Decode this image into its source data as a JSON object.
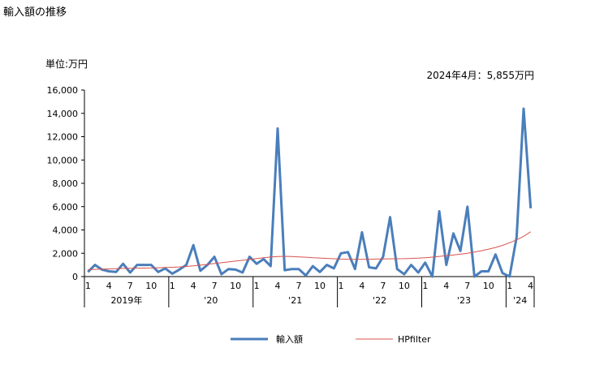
{
  "title": "輸入額の推移",
  "unit_label": "単位:万円",
  "annotation": "2024年4月：5,855万円",
  "colors": {
    "series1": "#4a7ebb",
    "series2": "#d9534f",
    "axis": "#000000"
  },
  "chart_data": {
    "type": "line",
    "ylim": [
      0,
      16000
    ],
    "y_ticks": [
      "0",
      "2,000",
      "4,000",
      "6,000",
      "8,000",
      "10,000",
      "12,000",
      "14,000",
      "16,000"
    ],
    "month_labels": [
      "1",
      "4",
      "7",
      "10",
      "1",
      "4",
      "7",
      "10",
      "1",
      "4",
      "7",
      "10",
      "1",
      "4",
      "7",
      "10",
      "1",
      "4",
      "7",
      "10",
      "1",
      "4"
    ],
    "year_labels": [
      "2019年",
      "'20",
      "'21",
      "'22",
      "'23",
      "'24"
    ],
    "legend_position": "bottom",
    "grid": false,
    "x": [
      "2019-01",
      "2019-02",
      "2019-03",
      "2019-04",
      "2019-05",
      "2019-06",
      "2019-07",
      "2019-08",
      "2019-09",
      "2019-10",
      "2019-11",
      "2019-12",
      "2020-01",
      "2020-02",
      "2020-03",
      "2020-04",
      "2020-05",
      "2020-06",
      "2020-07",
      "2020-08",
      "2020-09",
      "2020-10",
      "2020-11",
      "2020-12",
      "2021-01",
      "2021-02",
      "2021-03",
      "2021-04",
      "2021-05",
      "2021-06",
      "2021-07",
      "2021-08",
      "2021-09",
      "2021-10",
      "2021-11",
      "2021-12",
      "2022-01",
      "2022-02",
      "2022-03",
      "2022-04",
      "2022-05",
      "2022-06",
      "2022-07",
      "2022-08",
      "2022-09",
      "2022-10",
      "2022-11",
      "2022-12",
      "2023-01",
      "2023-02",
      "2023-03",
      "2023-04",
      "2023-05",
      "2023-06",
      "2023-07",
      "2023-08",
      "2023-09",
      "2023-10",
      "2023-11",
      "2023-12",
      "2024-01",
      "2024-02",
      "2024-03",
      "2024-04"
    ],
    "series": [
      {
        "name": "輸入額",
        "values": [
          400,
          1000,
          600,
          450,
          400,
          1100,
          350,
          1000,
          1000,
          1000,
          400,
          700,
          250,
          600,
          1000,
          2700,
          500,
          1000,
          1700,
          200,
          650,
          600,
          350,
          1700,
          1100,
          1500,
          900,
          12700,
          550,
          650,
          650,
          100,
          900,
          400,
          1000,
          700,
          2000,
          2100,
          650,
          3800,
          800,
          700,
          1700,
          5100,
          650,
          200,
          1000,
          350,
          1200,
          0,
          5600,
          1000,
          3700,
          2200,
          6000,
          0,
          450,
          450,
          1900,
          300,
          0,
          3400,
          14400,
          5855
        ]
      },
      {
        "name": "HPfilter",
        "values": [
          600,
          620,
          640,
          660,
          680,
          700,
          710,
          720,
          730,
          740,
          760,
          780,
          800,
          830,
          870,
          920,
          980,
          1050,
          1120,
          1190,
          1260,
          1330,
          1400,
          1470,
          1550,
          1620,
          1680,
          1720,
          1740,
          1720,
          1690,
          1660,
          1620,
          1590,
          1560,
          1530,
          1500,
          1490,
          1480,
          1480,
          1490,
          1500,
          1510,
          1520,
          1530,
          1540,
          1560,
          1580,
          1620,
          1670,
          1730,
          1790,
          1850,
          1920,
          2000,
          2100,
          2220,
          2350,
          2500,
          2680,
          2900,
          3150,
          3450,
          3850
        ]
      }
    ]
  }
}
